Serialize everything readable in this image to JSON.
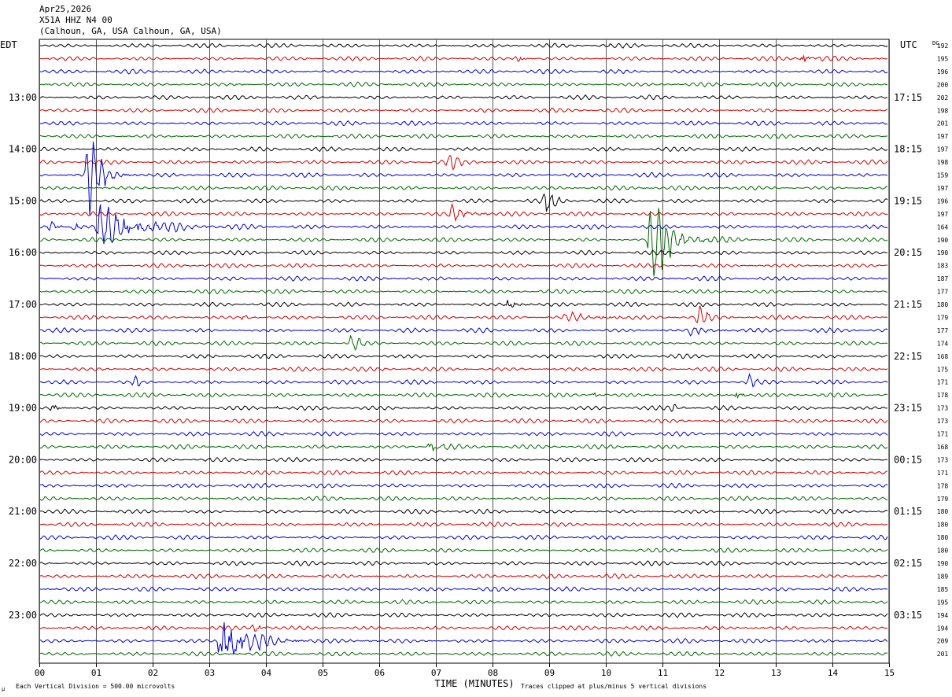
{
  "header": {
    "date": "Apr25,2026",
    "station": "X51A HHZ N4 00",
    "location": "(Calhoun, GA, USA Calhoun, GA, USA)"
  },
  "labels": {
    "left_zone": "EDT",
    "right_zone": "UTC",
    "dc": "DC",
    "x_axis": "TIME (MINUTES)",
    "scale_note": "Each Vertical Division =  500.00 microvolts",
    "clip_note": "Traces clipped at plus/minus 5 vertical divisions",
    "corner_mark": "μ"
  },
  "colors": {
    "trace_cycle": [
      "#000000",
      "#d00000",
      "#0000cc",
      "#006600"
    ],
    "grid": "#000000",
    "background": "#ffffff"
  },
  "chart_data": {
    "type": "line",
    "title": "X51A HHZ N4 00",
    "xlabel": "TIME (MINUTES)",
    "xlim": [
      0,
      15
    ],
    "x_ticks": [
      "00",
      "01",
      "02",
      "03",
      "04",
      "05",
      "06",
      "07",
      "08",
      "09",
      "10",
      "11",
      "12",
      "13",
      "14",
      "15"
    ],
    "edt_hour_labels": [
      {
        "row": 4,
        "text": "13:00"
      },
      {
        "row": 8,
        "text": "14:00"
      },
      {
        "row": 12,
        "text": "15:00"
      },
      {
        "row": 16,
        "text": "16:00"
      },
      {
        "row": 20,
        "text": "17:00"
      },
      {
        "row": 24,
        "text": "18:00"
      },
      {
        "row": 28,
        "text": "19:00"
      },
      {
        "row": 32,
        "text": "20:00"
      },
      {
        "row": 36,
        "text": "21:00"
      },
      {
        "row": 40,
        "text": "22:00"
      },
      {
        "row": 44,
        "text": "23:00"
      }
    ],
    "utc_hour_labels": [
      {
        "row": 4,
        "text": "17:15"
      },
      {
        "row": 8,
        "text": "18:15"
      },
      {
        "row": 12,
        "text": "19:15"
      },
      {
        "row": 16,
        "text": "20:15"
      },
      {
        "row": 20,
        "text": "21:15"
      },
      {
        "row": 24,
        "text": "22:15"
      },
      {
        "row": 28,
        "text": "23:15"
      },
      {
        "row": 32,
        "text": "00:15"
      },
      {
        "row": 36,
        "text": "01:15"
      },
      {
        "row": 40,
        "text": "02:15"
      },
      {
        "row": 44,
        "text": "03:15"
      }
    ],
    "dc_values": [
      "192",
      "195",
      "196",
      "200",
      "202",
      "198",
      "201",
      "197",
      "197",
      "198",
      "159",
      "197",
      "196",
      "197",
      "164",
      "190",
      "190",
      "183",
      "187",
      "177",
      "180",
      "179",
      "177",
      "174",
      "168",
      "175",
      "171",
      "178",
      "173",
      "173",
      "171",
      "168",
      "173",
      "171",
      "178",
      "179",
      "180",
      "180",
      "180",
      "180",
      "190",
      "189",
      "185",
      "195",
      "194",
      "194",
      "209",
      "201"
    ],
    "events": [
      {
        "row": 1,
        "minute": 8.45,
        "amp": 0.5,
        "dur": 0.25
      },
      {
        "row": 1,
        "minute": 13.5,
        "amp": 0.6,
        "dur": 0.6
      },
      {
        "row": 9,
        "minute": 7.25,
        "amp": 0.6,
        "dur": 0.4
      },
      {
        "row": 10,
        "minute": 0.85,
        "amp": 3.5,
        "dur": 0.6
      },
      {
        "row": 12,
        "minute": 8.95,
        "amp": 0.7,
        "dur": 0.5
      },
      {
        "row": 13,
        "minute": 7.3,
        "amp": 0.6,
        "dur": 0.7
      },
      {
        "row": 14,
        "minute": 0.2,
        "amp": 0.6,
        "dur": 0.3
      },
      {
        "row": 14,
        "minute": 0.6,
        "amp": 0.5,
        "dur": 0.3
      },
      {
        "row": 14,
        "minute": 1.05,
        "amp": 1.6,
        "dur": 1.8
      },
      {
        "row": 15,
        "minute": 10.8,
        "amp": 3.5,
        "dur": 1.0
      },
      {
        "row": 20,
        "minute": 8.25,
        "amp": 0.7,
        "dur": 0.4
      },
      {
        "row": 21,
        "minute": 3.6,
        "amp": 0.2,
        "dur": 0.4
      },
      {
        "row": 21,
        "minute": 9.3,
        "amp": 0.25,
        "dur": 2.2
      },
      {
        "row": 21,
        "minute": 11.65,
        "amp": 0.8,
        "dur": 0.4
      },
      {
        "row": 22,
        "minute": 11.5,
        "amp": 0.25,
        "dur": 1.0
      },
      {
        "row": 23,
        "minute": 5.5,
        "amp": 0.8,
        "dur": 0.4
      },
      {
        "row": 26,
        "minute": 1.7,
        "amp": 0.8,
        "dur": 0.12
      },
      {
        "row": 26,
        "minute": 12.55,
        "amp": 0.6,
        "dur": 0.15
      },
      {
        "row": 27,
        "minute": 9.8,
        "amp": 0.6,
        "dur": 0.15
      },
      {
        "row": 27,
        "minute": 12.3,
        "amp": 0.4,
        "dur": 0.3
      },
      {
        "row": 28,
        "minute": 0.25,
        "amp": 0.4,
        "dur": 0.3
      },
      {
        "row": 28,
        "minute": 4.2,
        "amp": 0.4,
        "dur": 0.12
      },
      {
        "row": 28,
        "minute": 11.2,
        "amp": 0.4,
        "dur": 0.2
      },
      {
        "row": 31,
        "minute": 6.9,
        "amp": 0.8,
        "dur": 0.5
      },
      {
        "row": 45,
        "minute": 3.8,
        "amp": 0.5,
        "dur": 0.4
      },
      {
        "row": 46,
        "minute": 3.2,
        "amp": 4.0,
        "dur": 1.0
      }
    ]
  }
}
